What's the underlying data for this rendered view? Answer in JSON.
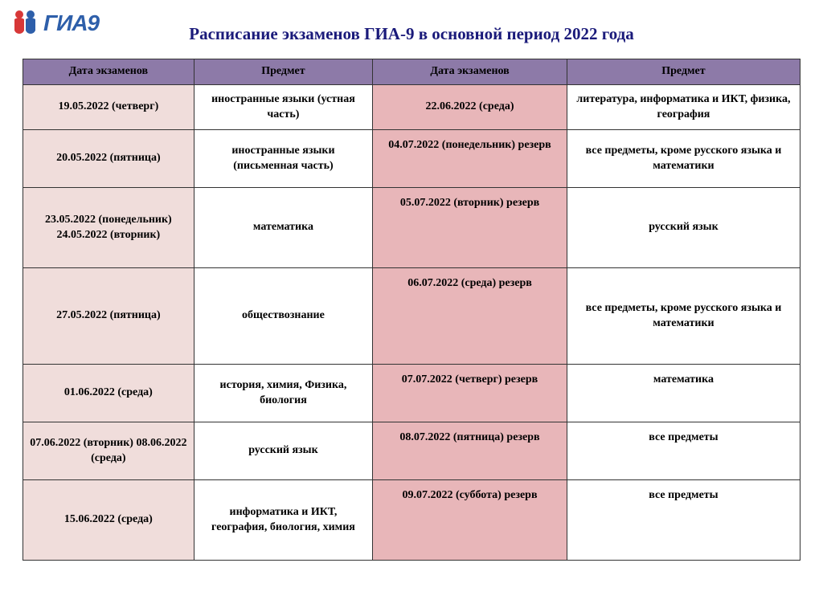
{
  "logo": {
    "text": "ГИА9"
  },
  "title": "Расписание экзаменов ГИА-9 в основной период 2022 года",
  "colors": {
    "header_bg": "#8d7aa8",
    "date1_bg": "#f0dddb",
    "subj1_bg": "#ffffff",
    "date2_bg": "#e8b6b9",
    "subj2_bg": "#ffffff",
    "title_color": "#1a1a7a",
    "border": "#333333"
  },
  "table": {
    "headers": [
      "Дата экзаменов",
      "Предмет",
      "Дата экзаменов",
      "Предмет"
    ],
    "rows": [
      {
        "date1": "19.05.2022 (четверг)",
        "subj1": "иностранные языки (устная часть)",
        "date2": "22.06.2022 (среда)",
        "subj2": "литература, информатика и ИКТ, физика, география",
        "h": "row-h"
      },
      {
        "date1": "20.05.2022 (пятница)",
        "subj1": "иностранные языки (письменная часть)",
        "date2": "04.07.2022  (понедельник) резерв",
        "subj2": "все предметы, кроме русского языка и математики",
        "h": "row-med"
      },
      {
        "date1": "23.05.2022 (понедельник) 24.05.2022 (вторник)",
        "subj1": "математика",
        "date2": "05.07.2022 (вторник) резерв",
        "subj2": "русский язык",
        "h": "row-hh"
      },
      {
        "date1": "27.05.2022 (пятница)",
        "subj1": "обществознание",
        "date2": "06.07.2022 (среда) резерв",
        "subj2": "все предметы, кроме русского языка и математики",
        "h": "row-big"
      },
      {
        "date1": "01.06.2022 (среда)",
        "subj1": "история, химия, Физика,  биология",
        "date2": "07.07.2022 (четверг) резерв",
        "subj2": "математика",
        "h": "row-med"
      },
      {
        "date1": "07.06.2022 (вторник) 08.06.2022 (среда)",
        "subj1": "русский язык",
        "date2": "08.07.2022 (пятница) резерв",
        "subj2": "все предметы",
        "h": "row-med"
      },
      {
        "date1": "15.06.2022 (среда)",
        "subj1": "информатика и ИКТ, география, биология, химия",
        "date2": "09.07.2022 (суббота) резерв",
        "subj2": "все предметы",
        "h": "row-hh"
      }
    ]
  }
}
